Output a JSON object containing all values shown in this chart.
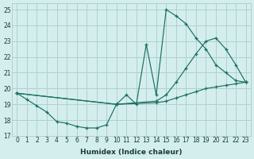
{
  "xlabel": "Humidex (Indice chaleur)",
  "xlim": [
    -0.5,
    23.5
  ],
  "ylim": [
    17,
    25.4
  ],
  "yticks": [
    17,
    18,
    19,
    20,
    21,
    22,
    23,
    24,
    25
  ],
  "xticks": [
    0,
    1,
    2,
    3,
    4,
    5,
    6,
    7,
    8,
    9,
    10,
    11,
    12,
    13,
    14,
    15,
    16,
    17,
    18,
    19,
    20,
    21,
    22,
    23
  ],
  "bg_color": "#d4eeee",
  "grid_color": "#b0d0d0",
  "line_color": "#1a7060",
  "line1_x": [
    0,
    1,
    2,
    3,
    4,
    5,
    6,
    7,
    8,
    9,
    10,
    11,
    12,
    13,
    14,
    15,
    16,
    17,
    18,
    19,
    20,
    21,
    22,
    23
  ],
  "line1_y": [
    19.7,
    19.3,
    18.9,
    18.5,
    17.9,
    17.8,
    17.6,
    17.5,
    17.5,
    17.7,
    19.0,
    19.6,
    19.0,
    22.8,
    19.6,
    25.0,
    24.6,
    24.1,
    23.2,
    22.5,
    21.5,
    21.0,
    20.5,
    20.4
  ],
  "line2_x": [
    0,
    10,
    14,
    15,
    16,
    17,
    18,
    19,
    20,
    21,
    22,
    23
  ],
  "line2_y": [
    19.7,
    19.0,
    19.2,
    19.6,
    20.4,
    21.3,
    22.2,
    23.0,
    23.2,
    22.5,
    21.5,
    20.4
  ],
  "line3_x": [
    0,
    10,
    14,
    15,
    16,
    17,
    18,
    19,
    20,
    21,
    22,
    23
  ],
  "line3_y": [
    19.7,
    19.0,
    19.1,
    19.2,
    19.4,
    19.6,
    19.8,
    20.0,
    20.1,
    20.2,
    20.3,
    20.4
  ]
}
